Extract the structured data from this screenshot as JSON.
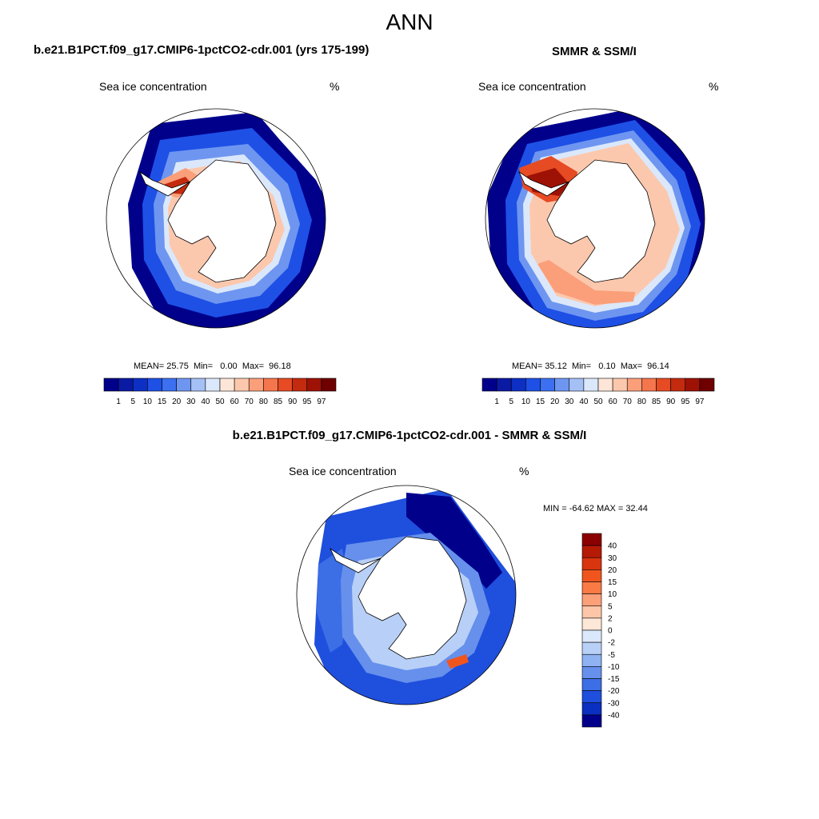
{
  "title": "ANN",
  "panels": [
    {
      "case_title": "b.e21.B1PCT.f09_g17.CMIP6-1pctCO2-cdr.001 (yrs 175-199)",
      "variable": "Sea ice concentration",
      "units": "%",
      "stats": {
        "mean_label": "MEAN=",
        "mean": "25.75",
        "min_label": "Min=",
        "min": "0.00",
        "max_label": "Max=",
        "max": "96.18"
      }
    },
    {
      "case_title": "SMMR & SSM/I",
      "variable": "Sea ice concentration",
      "units": "%",
      "stats": {
        "mean_label": "MEAN=",
        "mean": "35.12",
        "min_label": "Min=",
        "min": "0.10",
        "max_label": "Max=",
        "max": "96.14"
      }
    },
    {
      "case_title": "b.e21.B1PCT.f09_g17.CMIP6-1pctCO2-cdr.001 - SMMR & SSM/I",
      "variable": "Sea ice concentration",
      "units": "%",
      "minmax_text": "MIN = -64.62 MAX =  32.44"
    }
  ],
  "colorbar_conc": {
    "labels": [
      "1",
      "5",
      "10",
      "15",
      "20",
      "30",
      "40",
      "50",
      "60",
      "70",
      "80",
      "85",
      "90",
      "95",
      "97"
    ],
    "colors": [
      "#00008b",
      "#0a1aa3",
      "#0d2fc4",
      "#1e50e6",
      "#3c70f0",
      "#6e96f0",
      "#a5c0f5",
      "#dbe8fb",
      "#fde6d8",
      "#fcc8ad",
      "#fa9f7a",
      "#f5764c",
      "#e64b23",
      "#c42a0e",
      "#9e1205",
      "#6e0000"
    ]
  },
  "colorbar_diff": {
    "labels": [
      "40",
      "30",
      "20",
      "15",
      "10",
      "5",
      "2",
      "0",
      "-2",
      "-5",
      "-10",
      "-15",
      "-20",
      "-30",
      "-40"
    ],
    "colors": [
      "#8b0000",
      "#b51a05",
      "#d9350f",
      "#f0551e",
      "#fa7a45",
      "#fca07a",
      "#fdc6a8",
      "#fde8d8",
      "#dbe8fb",
      "#b8d0f7",
      "#8fb2f2",
      "#6690ec",
      "#3c6ee6",
      "#1f4fdd",
      "#0b2fc0",
      "#00008b"
    ]
  },
  "chart_data": {
    "type": "heatmap",
    "title": "ANN",
    "variable": "Sea ice concentration",
    "units": "%",
    "maps": [
      {
        "name": "b.e21.B1PCT.f09_g17.CMIP6-1pctCO2-cdr.001 (yrs 175-199)",
        "mean": 25.75,
        "min": 0.0,
        "max": 96.18
      },
      {
        "name": "SMMR & SSM/I",
        "mean": 35.12,
        "min": 0.1,
        "max": 96.14
      },
      {
        "name": "b.e21.B1PCT.f09_g17.CMIP6-1pctCO2-cdr.001 - SMMR & SSM/I",
        "min": -64.62,
        "max": 32.44
      }
    ],
    "levels_concentration": [
      1,
      5,
      10,
      15,
      20,
      30,
      40,
      50,
      60,
      70,
      80,
      85,
      90,
      95,
      97
    ],
    "levels_difference": [
      -40,
      -30,
      -20,
      -15,
      -10,
      -5,
      -2,
      0,
      2,
      5,
      10,
      15,
      20,
      30,
      40
    ]
  }
}
